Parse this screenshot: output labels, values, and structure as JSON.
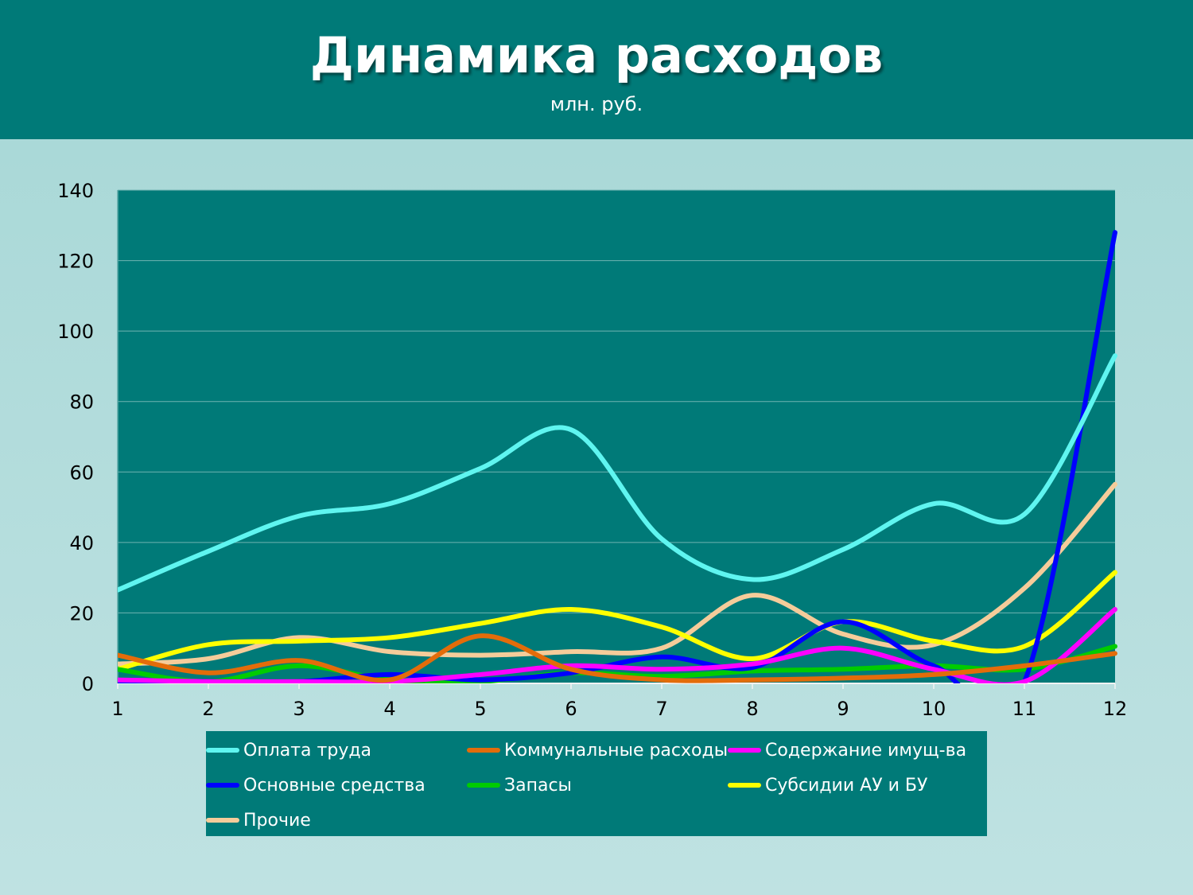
{
  "header": {
    "title": "Динамика расходов",
    "subtitle": "млн. руб."
  },
  "chart_data": {
    "type": "line",
    "title": "Динамика расходов",
    "subtitle": "млн. руб.",
    "xlabel": "",
    "ylabel": "",
    "x": [
      1,
      2,
      3,
      4,
      5,
      6,
      7,
      8,
      9,
      10,
      11,
      12
    ],
    "ylim": [
      0,
      140
    ],
    "yticks": [
      0,
      20,
      40,
      60,
      80,
      100,
      120,
      140
    ],
    "grid": true,
    "smooth": true,
    "plot_background": "#007a78",
    "legend_position": "bottom",
    "series": [
      {
        "name": "Оплата труда",
        "color": "#5ff5f0",
        "values": [
          26.5,
          37.5,
          47.5,
          51,
          61,
          72,
          41,
          29.5,
          38,
          51,
          48,
          93
        ]
      },
      {
        "name": "Коммунальные расходы",
        "color": "#e36c0a",
        "values": [
          8,
          3,
          6.5,
          1,
          13.5,
          4,
          1,
          1,
          1.5,
          2.5,
          5,
          8.5
        ]
      },
      {
        "name": "Содержание имущ-ва",
        "color": "#ff00ff",
        "values": [
          1,
          0.5,
          0.5,
          0.5,
          2.5,
          5,
          4,
          5.5,
          10,
          4,
          0.5,
          21
        ]
      },
      {
        "name": "Основные средства",
        "color": "#0000ff",
        "values": [
          0.5,
          0.5,
          0.5,
          2.5,
          1,
          3,
          7.5,
          4.5,
          17.5,
          5,
          0.5,
          128
        ]
      },
      {
        "name": "Запасы",
        "color": "#00cc00",
        "values": [
          4,
          0.5,
          5,
          1,
          0.5,
          3,
          2,
          3.5,
          4,
          5,
          4,
          10.5
        ]
      },
      {
        "name": "Субсидии АУ и БУ",
        "color": "#ffff00",
        "values": [
          4,
          11,
          12,
          13,
          17,
          21,
          16,
          7,
          17.5,
          12,
          10.5,
          31.5
        ]
      },
      {
        "name": "Прочие",
        "color": "#f5cc9a",
        "values": [
          5.5,
          7,
          13,
          9,
          8,
          9,
          10,
          25,
          14,
          11,
          27,
          56.5
        ]
      }
    ]
  }
}
